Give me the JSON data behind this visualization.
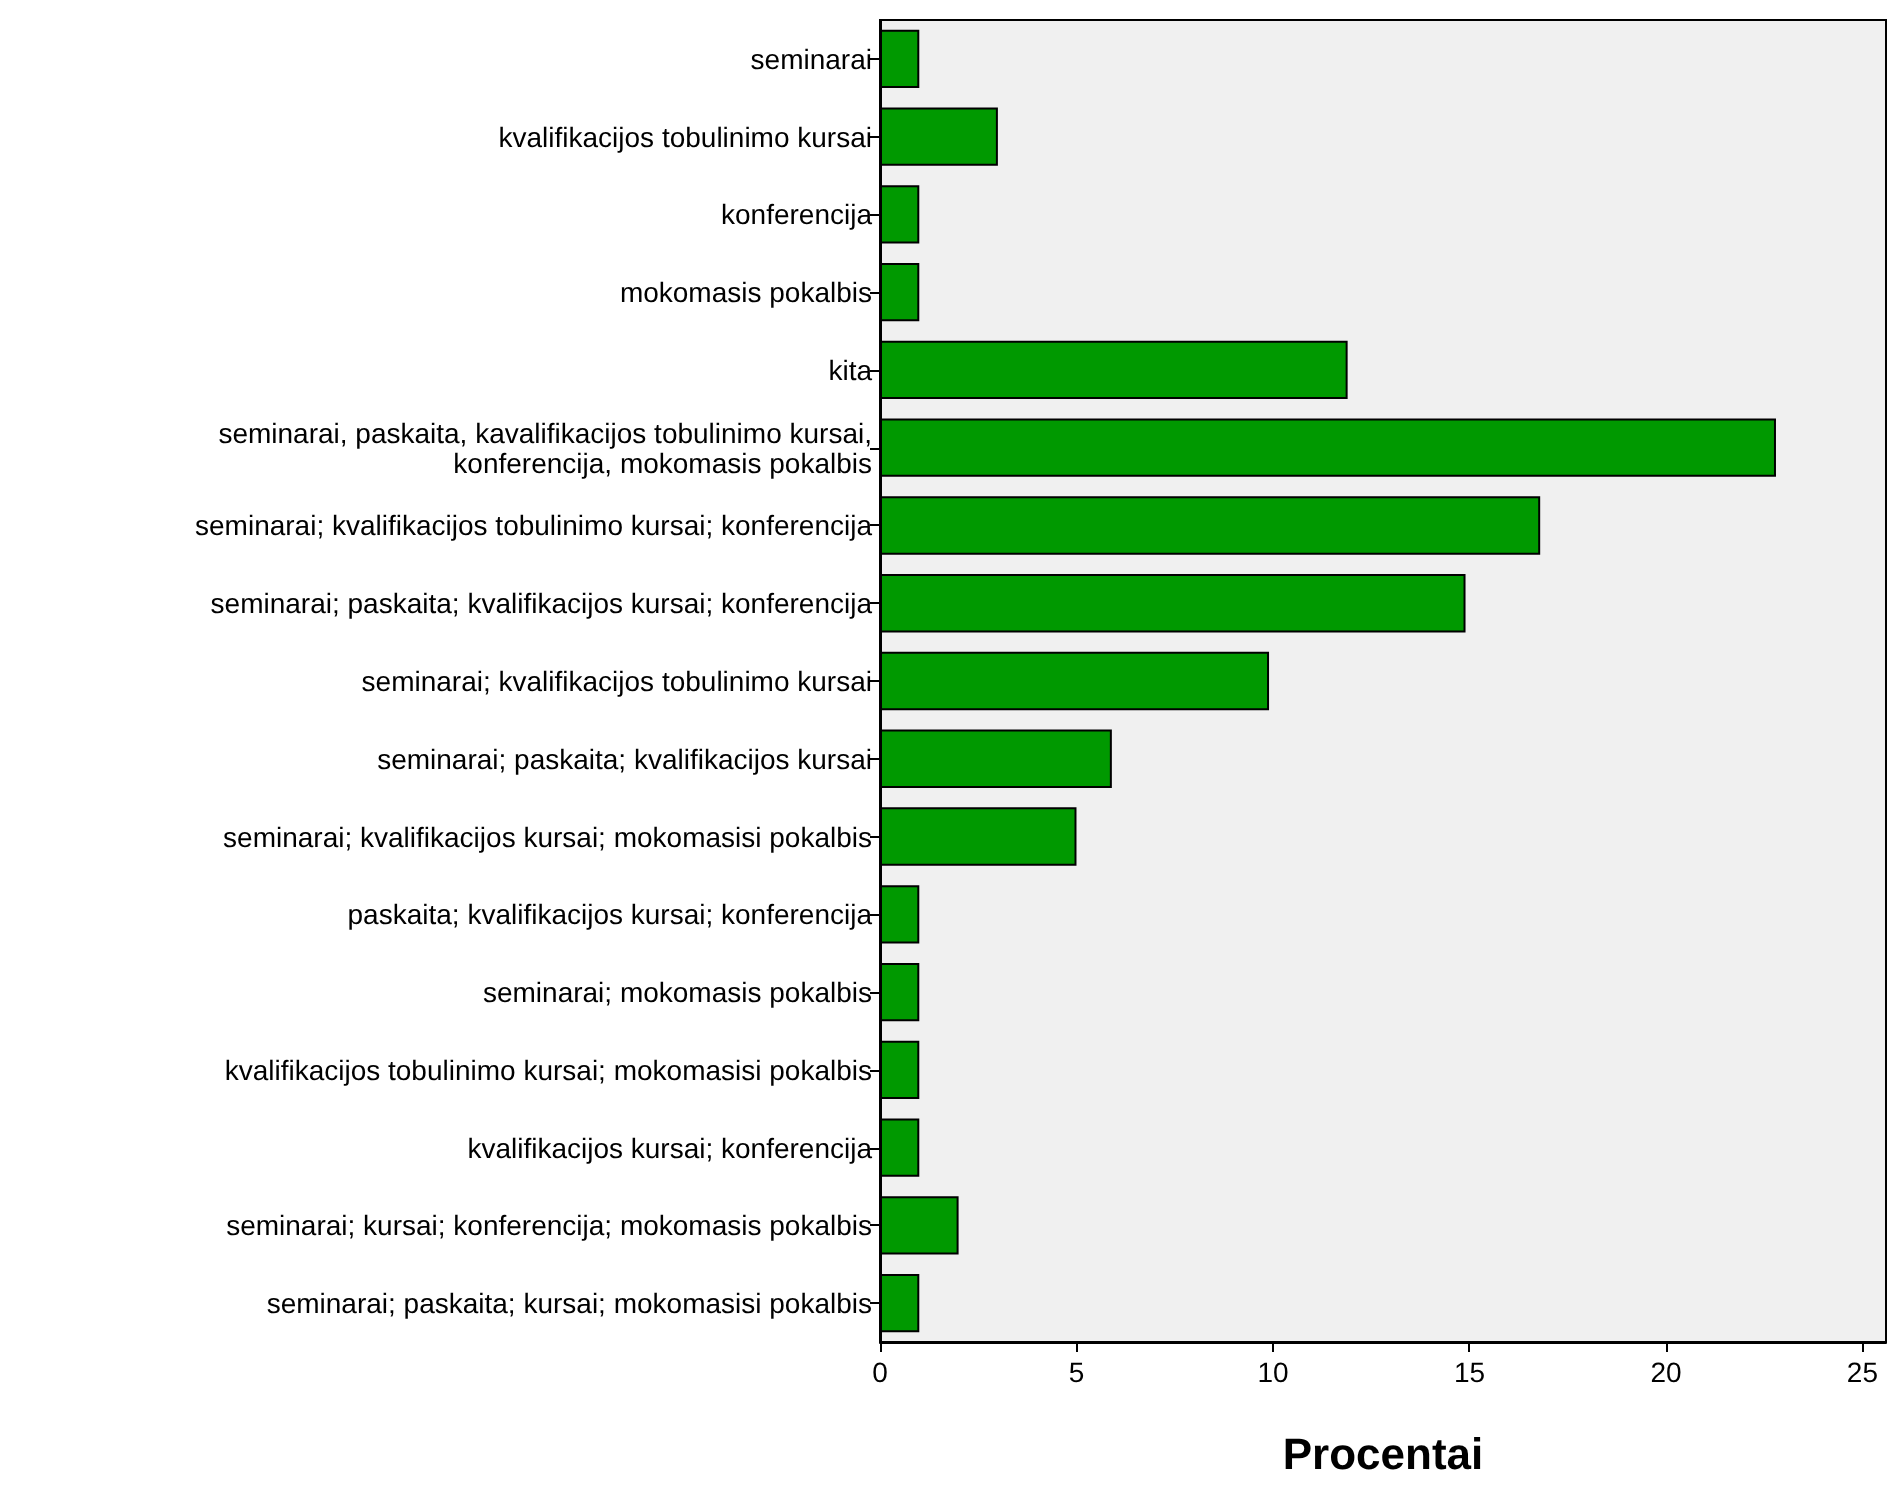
{
  "chart_data": {
    "type": "bar",
    "orientation": "horizontal",
    "xlabel": "Procentai",
    "categories": [
      "seminarai",
      "kvalifikacijos tobulinimo kursai",
      "konferencija",
      "mokomasis pokalbis",
      "kita",
      "seminarai, paskaita, kavalifikacijos tobulinimo kursai,\nkonferencija, mokomasis pokalbis",
      "seminarai; kvalifikacijos tobulinimo kursai; konferencija",
      "seminarai; paskaita; kvalifikacijos kursai; konferencija",
      "seminarai; kvalifikacijos tobulinimo kursai",
      "seminarai; paskaita; kvalifikacijos kursai",
      "seminarai; kvalifikacijos kursai; mokomasisi pokalbis",
      "paskaita; kvalifikacijos kursai; konferencija",
      "seminarai; mokomasis pokalbis",
      "kvalifikacijos tobulinimo kursai; mokomasisi pokalbis",
      "kvalifikacijos kursai; konferencija",
      "seminarai; kursai; konferencija; mokomasis pokalbis",
      "seminarai; paskaita; kursai; mokomasisi pokalbis"
    ],
    "values": [
      1.0,
      3.0,
      1.0,
      1.0,
      11.9,
      22.8,
      16.8,
      14.9,
      9.9,
      5.9,
      5.0,
      1.0,
      1.0,
      1.0,
      1.0,
      2.0,
      1.0
    ],
    "color": "#009900",
    "xlim": [
      0,
      25.6
    ],
    "xticks": [
      0,
      5,
      10,
      15,
      20,
      25
    ]
  }
}
